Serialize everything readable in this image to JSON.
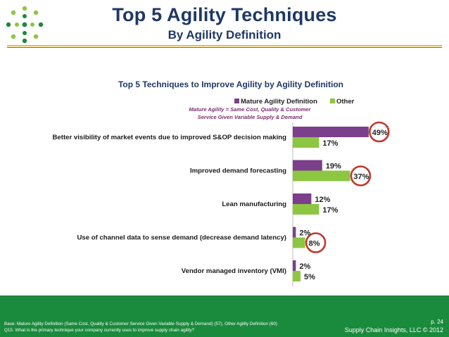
{
  "slide": {
    "title": "Top 5 Agility Techniques",
    "subtitle": "By Agility Definition"
  },
  "chart_data": {
    "type": "bar",
    "orientation": "horizontal",
    "title": "Top 5 Techniques to Improve Agility by Agility Definition",
    "note_lines": [
      "Mature Agility = Same Cost, Quality & Customer",
      "Service Given Variable Supply & Demand"
    ],
    "categories": [
      "Better visibility of market events due to improved S&OP decision making",
      "Improved demand forecasting",
      "Lean manufacturing",
      "Use of channel data to sense demand (decrease demand latency)",
      "Vendor managed inventory (VMI)"
    ],
    "series": [
      {
        "name": "Mature Agility Definition",
        "color": "#7b3f8c",
        "values": [
          49,
          19,
          12,
          2,
          2
        ],
        "labels": [
          "49%",
          "19%",
          "12%",
          "2%",
          "2%"
        ]
      },
      {
        "name": "Other",
        "color": "#8dc641",
        "values": [
          17,
          37,
          17,
          8,
          5
        ],
        "labels": [
          "17%",
          "37%",
          "17%",
          "8%",
          "5%"
        ]
      }
    ],
    "highlighted": [
      {
        "series": 0,
        "index": 0
      },
      {
        "series": 1,
        "index": 1
      },
      {
        "series": 1,
        "index": 3
      }
    ],
    "xlim": [
      0,
      50
    ],
    "legend_position": "top-right",
    "grid": false
  },
  "colors": {
    "title": "#1f3864",
    "highlight_ring": "#c0392b",
    "footer_bg": "#1a8a3c"
  },
  "footer": {
    "base_note": "Base: Mature Agility Definition (Same Cost, Quality & Customer Service Given Variable Supply & Demand) (57), Other Agility Definition (60)",
    "question_note": "Q15. What is the primary technique your company currently uses to improve supply chain agility?",
    "page": "p. 24",
    "brand": "Supply Chain Insights, LLC © 2012"
  }
}
